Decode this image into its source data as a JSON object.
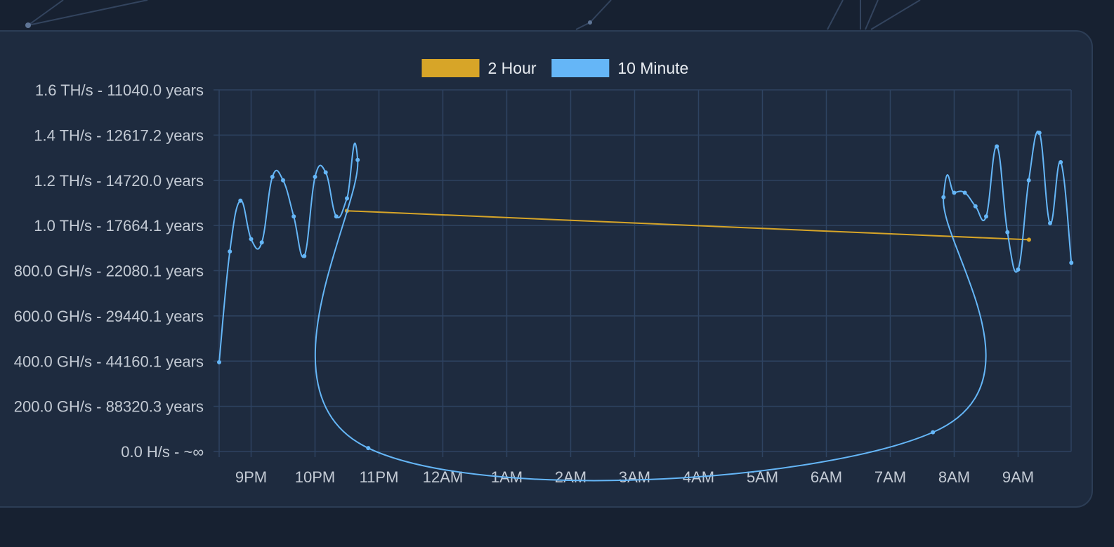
{
  "chart_data": {
    "type": "line",
    "legend": {
      "placement": "top-center",
      "items": [
        {
          "label": "2 Hour",
          "color": "#d7a528"
        },
        {
          "label": "10 Minute",
          "color": "#65b6f7"
        }
      ]
    },
    "colors": {
      "page_background": "#172131",
      "card_background": "#1e2b3f",
      "grid": "#2e4361",
      "tick_text": "#c3cad4"
    },
    "grid": true,
    "x_axis": {
      "unit": "hours since 8:30PM",
      "range": [
        0,
        13.33
      ],
      "ticks": [
        {
          "label": "9PM",
          "value": 0.5
        },
        {
          "label": "10PM",
          "value": 1.5
        },
        {
          "label": "11PM",
          "value": 2.5
        },
        {
          "label": "12AM",
          "value": 3.5
        },
        {
          "label": "1AM",
          "value": 4.5
        },
        {
          "label": "2AM",
          "value": 5.5
        },
        {
          "label": "3AM",
          "value": 6.5
        },
        {
          "label": "4AM",
          "value": 7.5
        },
        {
          "label": "5AM",
          "value": 8.5
        },
        {
          "label": "6AM",
          "value": 9.5
        },
        {
          "label": "7AM",
          "value": 10.5
        },
        {
          "label": "8AM",
          "value": 11.5
        },
        {
          "label": "9AM",
          "value": 12.5
        }
      ]
    },
    "y_axis": {
      "unit": "TH/s",
      "range": [
        0,
        1.6
      ],
      "ticks": [
        {
          "label": "1.6 TH/s - 11040.0 years",
          "value": 1.6
        },
        {
          "label": "1.4 TH/s - 12617.2 years",
          "value": 1.4
        },
        {
          "label": "1.2 TH/s - 14720.0 years",
          "value": 1.2
        },
        {
          "label": "1.0 TH/s - 17664.1 years",
          "value": 1.0
        },
        {
          "label": "800.0 GH/s - 22080.1 years",
          "value": 0.8
        },
        {
          "label": "600.0 GH/s - 29440.1 years",
          "value": 0.6
        },
        {
          "label": "400.0 GH/s - 44160.1 years",
          "value": 0.4
        },
        {
          "label": "200.0 GH/s - 88320.3 years",
          "value": 0.2
        },
        {
          "label": "0.0 H/s - ~∞",
          "value": 0.0
        }
      ]
    },
    "series": [
      {
        "name": "2 Hour",
        "color": "#d7a528",
        "smooth": false,
        "points": [
          {
            "x": 2.0,
            "y": 1.065
          },
          {
            "x": 12.67,
            "y": 0.937
          }
        ]
      },
      {
        "name": "10 Minute",
        "color": "#65b6f7",
        "smooth": true,
        "points": [
          {
            "x": 0.0,
            "y": 0.395
          },
          {
            "x": 0.167,
            "y": 0.885
          },
          {
            "x": 0.333,
            "y": 1.11
          },
          {
            "x": 0.5,
            "y": 0.94
          },
          {
            "x": 0.667,
            "y": 0.925
          },
          {
            "x": 0.833,
            "y": 1.215
          },
          {
            "x": 1.0,
            "y": 1.2
          },
          {
            "x": 1.167,
            "y": 1.04
          },
          {
            "x": 1.333,
            "y": 0.865
          },
          {
            "x": 1.5,
            "y": 1.215
          },
          {
            "x": 1.667,
            "y": 1.235
          },
          {
            "x": 1.833,
            "y": 1.04
          },
          {
            "x": 2.0,
            "y": 1.12
          },
          {
            "x": 2.167,
            "y": 1.29
          },
          {
            "x": 2.333,
            "y": 0.015
          },
          {
            "x": 11.167,
            "y": 0.085
          },
          {
            "x": 11.333,
            "y": 1.125
          },
          {
            "x": 11.5,
            "y": 1.145
          },
          {
            "x": 11.667,
            "y": 1.145
          },
          {
            "x": 11.833,
            "y": 1.085
          },
          {
            "x": 12.0,
            "y": 1.04
          },
          {
            "x": 12.167,
            "y": 1.35
          },
          {
            "x": 12.333,
            "y": 0.97
          },
          {
            "x": 12.5,
            "y": 0.805
          },
          {
            "x": 12.667,
            "y": 1.2
          },
          {
            "x": 12.833,
            "y": 1.41
          },
          {
            "x": 13.0,
            "y": 1.01
          },
          {
            "x": 13.167,
            "y": 1.28
          },
          {
            "x": 13.333,
            "y": 0.835
          }
        ]
      }
    ]
  }
}
